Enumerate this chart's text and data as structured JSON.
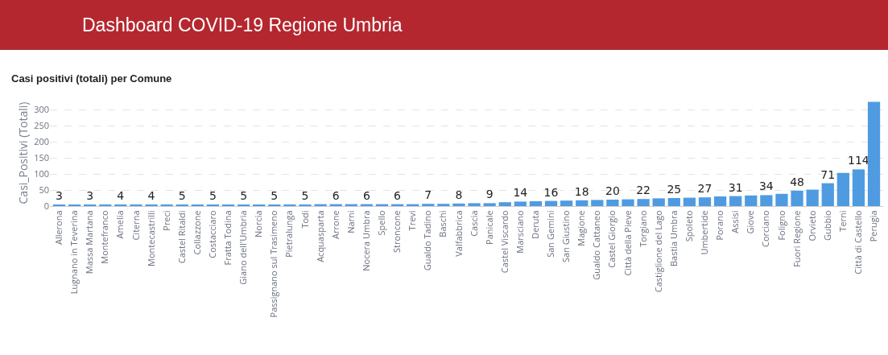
{
  "chart_data": {
    "type": "bar",
    "title": "Dashboard COVID-19 Regione Umbria",
    "subtitle": "Casi positivi (totali) per Comune",
    "ylabel": "Casi_Positivi (Totali)",
    "categories": [
      "Allerona",
      "Lugnano in Teverina",
      "Massa Martana",
      "Montefranco",
      "Amelia",
      "Citerna",
      "Montecastrilli",
      "Preci",
      "Castel Ritaldi",
      "Collazzone",
      "Costacciaro",
      "Fratta Todina",
      "Giano dell'Umbria",
      "Norcia",
      "Passignano sul Trasimeno",
      "Pietralunga",
      "Todi",
      "Acquasparta",
      "Arrone",
      "Narni",
      "Nocera Umbra",
      "Spello",
      "Stroncone",
      "Trevi",
      "Gualdo Tadino",
      "Baschi",
      "Valfabbrica",
      "Cascia",
      "Panicale",
      "Castel Viscardo",
      "Marsciano",
      "Deruta",
      "San Gemini",
      "San Giustino",
      "Magione",
      "Gualdo Cattaneo",
      "Castel Giorgio",
      "Città della Pieve",
      "Torgiano",
      "Castiglione del Lago",
      "Bastia Umbra",
      "Spoleto",
      "Umbertide",
      "Porano",
      "Assisi",
      "Giove",
      "Corciano",
      "Foligno",
      "Fuori Regione",
      "Orvieto",
      "Gubbio",
      "Terni",
      "Città di Castello",
      "Perugia"
    ],
    "values": [
      3,
      3,
      3,
      4,
      4,
      4,
      4,
      4,
      5,
      5,
      5,
      5,
      5,
      5,
      5,
      5,
      5,
      6,
      6,
      6,
      6,
      6,
      6,
      6,
      7,
      7,
      8,
      9,
      9,
      12,
      14,
      15,
      16,
      17,
      18,
      19,
      20,
      21,
      22,
      24,
      25,
      26,
      27,
      30,
      31,
      33,
      34,
      38,
      48,
      51,
      71,
      103,
      114,
      324
    ],
    "value_labels": [
      "3",
      null,
      "3",
      null,
      "4",
      null,
      "4",
      null,
      "5",
      null,
      "5",
      null,
      "5",
      null,
      "5",
      null,
      "5",
      null,
      "6",
      null,
      "6",
      null,
      "6",
      null,
      "7",
      null,
      "8",
      null,
      "9",
      null,
      "14",
      null,
      "16",
      null,
      "18",
      null,
      "20",
      null,
      "22",
      null,
      "25",
      null,
      "27",
      null,
      "31",
      null,
      "34",
      null,
      "48",
      null,
      "71",
      null,
      "114",
      null
    ],
    "color": "#4f9be2",
    "ylim": [
      0,
      330
    ],
    "yticks": [
      0,
      50,
      100,
      150,
      200,
      250,
      300
    ],
    "grid": "y",
    "legend": false
  }
}
